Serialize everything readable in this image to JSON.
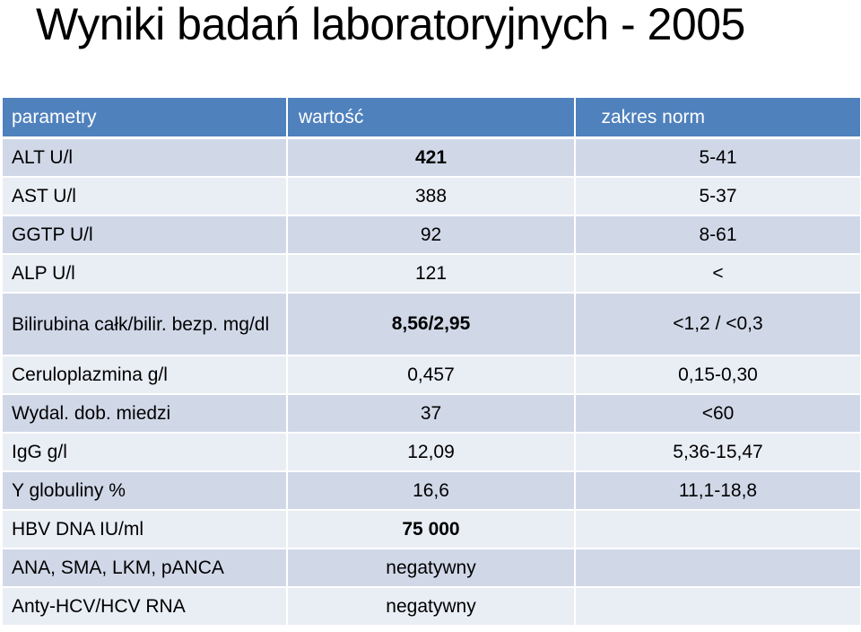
{
  "title": "Wyniki badań laboratoryjnych - 2005",
  "table": {
    "headers": [
      "parametry",
      "wartość",
      "zakres norm"
    ],
    "rows": [
      {
        "param": "ALT U/l",
        "value": "421",
        "range": "5-41",
        "value_bold": true
      },
      {
        "param": "AST U/l",
        "value": "388",
        "range": "5-37",
        "value_bold": false
      },
      {
        "param": "GGTP U/l",
        "value": "92",
        "range": "8-61",
        "value_bold": false
      },
      {
        "param": "ALP U/l",
        "value": "121",
        "range": "<",
        "value_bold": false
      },
      {
        "param": "Bilirubina całk/bilir. bezp. mg/dl",
        "value": "8,56/2,95",
        "range": "<1,2 / <0,3",
        "value_bold": true
      },
      {
        "param": "Ceruloplazmina g/l",
        "value": "0,457",
        "range": "0,15-0,30",
        "value_bold": false
      },
      {
        "param": "Wydal. dob. miedzi",
        "value": "37",
        "range": "<60",
        "value_bold": false
      },
      {
        "param": "IgG g/l",
        "value": "12,09",
        "range": "5,36-15,47",
        "value_bold": false
      },
      {
        "param": "Y globuliny %",
        "value": "16,6",
        "range": "11,1-18,8",
        "value_bold": false
      },
      {
        "param": "HBV DNA IU/ml",
        "value": "75 000",
        "range": "",
        "value_bold": true
      },
      {
        "param": "ANA, SMA, LKM, pANCA",
        "value": "negatywny",
        "range": "",
        "value_bold": false
      },
      {
        "param": "Anty-HCV/HCV RNA",
        "value": "negatywny",
        "range": "",
        "value_bold": false
      }
    ]
  },
  "colors": {
    "header_bg": "#4f81bd",
    "row_dark": "#d0d8e8",
    "row_light": "#e9edf4"
  }
}
